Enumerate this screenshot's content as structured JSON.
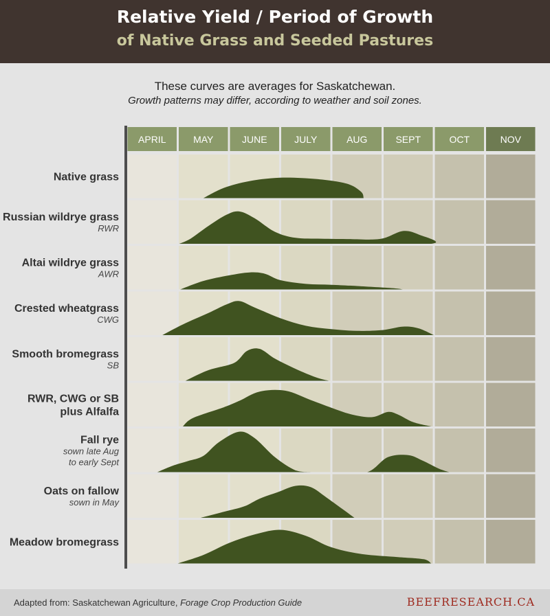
{
  "header": {
    "title_line1": "Relative Yield / Period of Growth",
    "title_line2": "of Native Grass and Seeded Pastures"
  },
  "subtitle": {
    "line1": "These curves are averages for Saskatchewan.",
    "line2": "Growth patterns may differ, according to weather and soil zones."
  },
  "footer": {
    "source_prefix": "Adapted from: Saskatchewan Agriculture, ",
    "source_title": "Forage Crop Production Guide",
    "brand": "BEEFRESEARCH.CA"
  },
  "colors": {
    "header_bg": "#40342f",
    "title_line2": "#c8c79c",
    "month_header": "#8b9a6a",
    "month_header_dark": "#6e7b52",
    "curve_fill": "#405320",
    "axis_line": "#4d4d4d",
    "brand": "#9e2a1f",
    "month_cells": [
      "#e8e5dc",
      "#e3e0cc",
      "#e3e0cc",
      "#dbd8c2",
      "#d1cdb9",
      "#d1cdb9",
      "#c5c1ad",
      "#b1ac99"
    ]
  },
  "chart_data": {
    "type": "area",
    "title": "Relative Yield / Period of Growth of Native Grass and Seeded Pastures",
    "x_unit": "month (1.0 = start of April, 9.0 = end of November)",
    "months": [
      "APRIL",
      "MAY",
      "JUNE",
      "JULY",
      "AUG",
      "SEPT",
      "OCT",
      "NOV"
    ],
    "y_unit": "relative yield (0–1, no printed scale)",
    "series": [
      {
        "name": "Native grass",
        "note": "",
        "points": [
          [
            2.5,
            0
          ],
          [
            2.9,
            0.24
          ],
          [
            3.4,
            0.4
          ],
          [
            4.0,
            0.48
          ],
          [
            4.7,
            0.45
          ],
          [
            5.3,
            0.34
          ],
          [
            5.58,
            0.15
          ],
          [
            5.63,
            0
          ]
        ]
      },
      {
        "name": "Russian wildrye grass",
        "note": "RWR",
        "points": [
          [
            2.03,
            0
          ],
          [
            2.25,
            0.12
          ],
          [
            2.6,
            0.42
          ],
          [
            2.95,
            0.68
          ],
          [
            3.2,
            0.76
          ],
          [
            3.5,
            0.6
          ],
          [
            3.9,
            0.28
          ],
          [
            4.3,
            0.14
          ],
          [
            4.8,
            0.12
          ],
          [
            5.4,
            0.11
          ],
          [
            5.8,
            0.1
          ],
          [
            6.05,
            0.14
          ],
          [
            6.4,
            0.3
          ],
          [
            6.7,
            0.22
          ],
          [
            6.95,
            0
          ],
          [
            5.0,
            0
          ]
        ]
      },
      {
        "name": "Altai wildrye grass",
        "note": "AWR",
        "points": [
          [
            2.05,
            0
          ],
          [
            2.5,
            0.2
          ],
          [
            3.0,
            0.33
          ],
          [
            3.4,
            0.4
          ],
          [
            3.7,
            0.37
          ],
          [
            4.0,
            0.22
          ],
          [
            4.5,
            0.13
          ],
          [
            5.0,
            0.11
          ],
          [
            5.5,
            0.08
          ],
          [
            6.2,
            0.03
          ],
          [
            6.4,
            0
          ]
        ]
      },
      {
        "name": "Crested wheatgrass",
        "note": "CWG",
        "points": [
          [
            1.7,
            0
          ],
          [
            2.1,
            0.25
          ],
          [
            2.6,
            0.52
          ],
          [
            2.95,
            0.72
          ],
          [
            3.2,
            0.8
          ],
          [
            3.5,
            0.65
          ],
          [
            4.0,
            0.4
          ],
          [
            4.5,
            0.22
          ],
          [
            5.0,
            0.14
          ],
          [
            5.5,
            0.1
          ],
          [
            6.0,
            0.12
          ],
          [
            6.4,
            0.2
          ],
          [
            6.7,
            0.16
          ],
          [
            7.0,
            0
          ]
        ]
      },
      {
        "name": "Smooth bromegrass",
        "note": "SB",
        "points": [
          [
            2.15,
            0
          ],
          [
            2.6,
            0.25
          ],
          [
            3.1,
            0.42
          ],
          [
            3.35,
            0.7
          ],
          [
            3.6,
            0.75
          ],
          [
            3.9,
            0.52
          ],
          [
            4.3,
            0.28
          ],
          [
            4.7,
            0.08
          ],
          [
            4.95,
            0
          ]
        ]
      },
      {
        "name": "RWR, CWG or SB plus Alfalfa",
        "note": "",
        "points": [
          [
            2.1,
            0
          ],
          [
            2.3,
            0.2
          ],
          [
            2.9,
            0.45
          ],
          [
            3.2,
            0.6
          ],
          [
            3.6,
            0.82
          ],
          [
            4.1,
            0.84
          ],
          [
            4.6,
            0.62
          ],
          [
            5.0,
            0.44
          ],
          [
            5.4,
            0.28
          ],
          [
            5.8,
            0.22
          ],
          [
            6.1,
            0.34
          ],
          [
            6.3,
            0.28
          ],
          [
            6.6,
            0.1
          ],
          [
            6.95,
            0
          ]
        ]
      },
      {
        "name": "Fall rye",
        "note": "sown late Aug to early Sept",
        "points": [
          [
            1.6,
            0
          ],
          [
            1.9,
            0.15
          ],
          [
            2.2,
            0.26
          ],
          [
            2.5,
            0.38
          ],
          [
            2.8,
            0.7
          ],
          [
            3.2,
            0.95
          ],
          [
            3.5,
            0.8
          ],
          [
            3.9,
            0.35
          ],
          [
            4.3,
            0.04
          ],
          [
            4.6,
            0
          ],
          [
            5.1,
            0
          ],
          [
            5.7,
            0
          ],
          [
            6.1,
            0.35
          ],
          [
            6.5,
            0.4
          ],
          [
            6.8,
            0.26
          ],
          [
            7.1,
            0.08
          ],
          [
            7.3,
            0
          ]
        ]
      },
      {
        "name": "Oats on fallow",
        "note": "sown in May",
        "points": [
          [
            2.45,
            0
          ],
          [
            2.9,
            0.14
          ],
          [
            3.3,
            0.27
          ],
          [
            3.6,
            0.45
          ],
          [
            3.95,
            0.6
          ],
          [
            4.3,
            0.75
          ],
          [
            4.6,
            0.72
          ],
          [
            4.9,
            0.48
          ],
          [
            5.2,
            0.22
          ],
          [
            5.45,
            0
          ]
        ]
      },
      {
        "name": "Meadow bromegrass",
        "note": "",
        "points": [
          [
            2.0,
            0
          ],
          [
            2.5,
            0.2
          ],
          [
            3.0,
            0.48
          ],
          [
            3.5,
            0.68
          ],
          [
            4.0,
            0.79
          ],
          [
            4.5,
            0.65
          ],
          [
            5.0,
            0.38
          ],
          [
            5.6,
            0.22
          ],
          [
            6.3,
            0.15
          ],
          [
            6.8,
            0.1
          ],
          [
            6.95,
            0
          ]
        ]
      }
    ]
  }
}
